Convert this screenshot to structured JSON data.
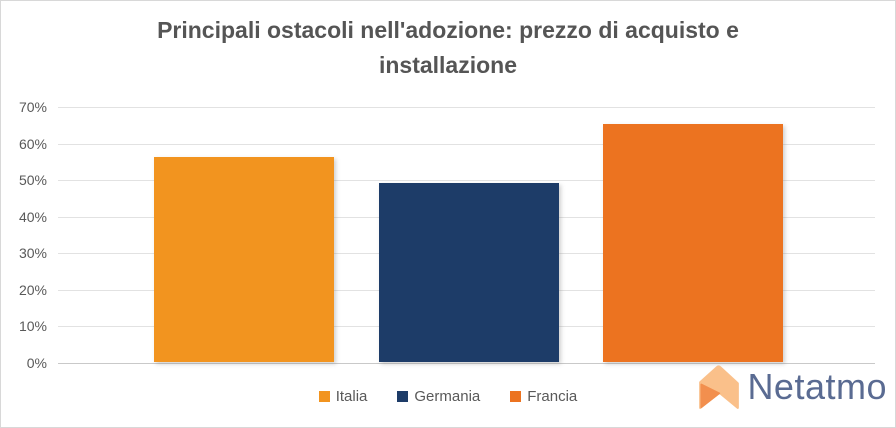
{
  "title": "Principali ostacoli nell'adozione: prezzo di acquisto e installazione",
  "chart_data": {
    "type": "bar",
    "title": "Principali ostacoli nell'adozione: prezzo di acquisto e installazione",
    "categories": [
      "Italia",
      "Germania",
      "Francia"
    ],
    "series": [
      {
        "name": "Italia",
        "value": 56,
        "color": "#F2941F"
      },
      {
        "name": "Germania",
        "value": 49,
        "color": "#1D3C68"
      },
      {
        "name": "Francia",
        "value": 65,
        "color": "#EC7320"
      }
    ],
    "ylim": [
      0,
      70
    ],
    "yticks_top_to_bottom": [
      "70%",
      "60%",
      "50%",
      "40%",
      "30%",
      "20%",
      "10%",
      "0%"
    ],
    "xlabel": "",
    "ylabel": "",
    "grid": true,
    "legend_position": "bottom"
  },
  "legend": {
    "items": [
      {
        "label": "Italia",
        "color": "#F2941F"
      },
      {
        "label": "Germania",
        "color": "#1D3C68"
      },
      {
        "label": "Francia",
        "color": "#EC7320"
      }
    ]
  },
  "branding": {
    "logo_text": "Netatmo",
    "logo_text_color": "#5A6B92",
    "logo_icon_light": "#FAC08A",
    "logo_icon_dark": "#F28F4E"
  }
}
